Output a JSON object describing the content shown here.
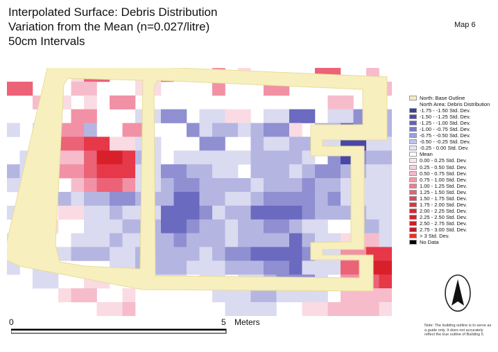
{
  "title": {
    "line1": "Interpolated Surface: Debris Distribution",
    "line2": "Variation from the Mean (n=0.027/litre)",
    "line3": "50cm Intervals"
  },
  "map_label": "Map 6",
  "legend": {
    "items": [
      {
        "label": "North: Base Outline",
        "color": "#f5ecb8"
      },
      {
        "label": "North Area: Debris Distribution",
        "color": null
      },
      {
        "label": "-1.75 - -1.50 Std. Dev.",
        "color": "#3d3d9e"
      },
      {
        "label": "-1.50 - -1.25 Std. Dev.",
        "color": "#4b4bab"
      },
      {
        "label": "-1.25 - -1.00 Std. Dev.",
        "color": "#6060bb"
      },
      {
        "label": "-1.00 - -0.75 Std. Dev.",
        "color": "#7b7bca"
      },
      {
        "label": "-0.75 - -0.50 Std. Dev.",
        "color": "#9e9ed9"
      },
      {
        "label": "-0.50 - -0.25 Std. Dev.",
        "color": "#c3c3e8"
      },
      {
        "label": "-0.25 - 0.00 Std. Dev.",
        "color": "#e4e4f5"
      },
      {
        "label": "Mean",
        "color": "#ffffff"
      },
      {
        "label": "0.00 - 0.25 Std. Dev.",
        "color": "#fbe6ec"
      },
      {
        "label": "0.25 - 0.50 Std. Dev.",
        "color": "#f8d0dc"
      },
      {
        "label": "0.50 - 0.75 Std. Dev.",
        "color": "#f6b8c8"
      },
      {
        "label": "0.75 - 1.00 Std. Dev.",
        "color": "#f39aae"
      },
      {
        "label": "1.00 - 1.25 Std. Dev.",
        "color": "#f07c90"
      },
      {
        "label": "1.25 - 1.50 Std. Dev.",
        "color": "#ec5f72"
      },
      {
        "label": "1.50 - 1.75 Std. Dev.",
        "color": "#e84458"
      },
      {
        "label": "1.75 - 2.00 Std. Dev.",
        "color": "#e4303f"
      },
      {
        "label": "2.00 - 2.25 Std. Dev.",
        "color": "#e0242f"
      },
      {
        "label": "2.25 - 2.50 Std. Dev.",
        "color": "#d8202a"
      },
      {
        "label": "2.50 - 2.75 Std. Dev.",
        "color": "#d01c24"
      },
      {
        "label": "2.75 - 3.00 Std. Dev.",
        "color": "#c8181e"
      },
      {
        "label": "> 3 Std. Dev.",
        "color": "#ff2a1a"
      },
      {
        "label": "No Data",
        "color": "#000000"
      }
    ]
  },
  "scale": {
    "start": "0",
    "end": "5",
    "unit": "Meters"
  },
  "north_arrow_label": "N",
  "note": "Note: The building outline is to serve as a guide only. It does not accurately reflect the true outline of Building 5.",
  "colors": {
    "outline_fill": "#f7efbe",
    "outline_edge": "#e8dc9a"
  },
  "grid": [
    "  0 0 0 0 0 1 4 4 0 0 1 1 4 0 0 0 3 0 1 0 0 0 0 0 4 4 0 0 2 0 ",
    "  0 0 0 0 0 1 4 4 0 0 1 1 4 0 0 0 3 0 1 0 0 0 0 0 4 4 0 0 2 0 ",
    "  4 4 0 0 0 2 2 0 0 0 1 1 0 0 0 0 3 0 0 0 3 3 0 0 0 0 0 0 0 2 ",
    "  4 4 0 0 0 2 2 0 0 0 1 1 0 0 0 0 3 0 0 0 3 3 0 0 0 0 0 0 0 2 ",
    "  0 0 2 2 1 0 1 0 3 3 0 0 0 0 0 0 0 0 0 0 0 0 0 0 0 2 2 0 0 0 ",
    "  0 0 2 2 1 0 1 0 3 3 0 0 0 0 0 0 0 0 0 0 0 0 0 0 0 2 2 0 0 0 ",
    "  0 0 0 0 0 3 3 0 0 0 -1 -1 -3 -3 0 -1 -1 1 1 0 -1 -1 -4 -4 0 -1 -1 -3 -3 -2 ",
    "  0 0 0 0 0 3 3 0 0 0 -1 -1 -3 -3 0 -1 -1 1 1 0 -1 -1 -4 -4 0 -1 -1 -3 -3 -2 ",
    "  -1 0 -1 -1 3 3 -2 0 0 3 3 0 0 0 -3 -1 -2 -2 -1 -2 -3 -3 1 0 -2 -2 -4 -3 -2 -2 ",
    "  -1 0 -1 -1 3 3 -2 0 0 3 3 0 0 0 -3 -1 -2 -2 -1 -2 -3 -3 1 0 -2 -2 -4 -3 -2 -2 ",
    "  0 0 -2 -2 4 4 5 5 1 1 -1 -1 0 0 0 -3 -3 0 0 -2 -1 -1 -2 -2 -1 -1 -5 -5 -1 -1 ",
    "  0 0 -2 -2 4 4 5 5 1 1 -1 -1 0 0 0 -3 -3 0 0 -2 -1 -1 -2 -2 -1 -1 -5 -5 -1 -1 ",
    "  0 -1 0 0 2 2 4 6 6 5 -2 -1 0 -1 -1 -1 -1 -1 -1 -2 -2 -2 -2 -1 0 -3 -5 -3 -2 -2 ",
    "  0 -1 0 0 2 2 4 6 6 5 -2 -1 0 -1 -1 -1 -1 -1 -1 -2 -2 -2 -2 -1 0 -3 -5 -3 -2 -2 ",
    "  -2 -1 5 5 3 3 4 5 5 5 -1 -1 -3 -3 -2 -2 -1 -1 0 -2 -2 -2 -1 -2 -3 -3 -2 -2 -1 -1 ",
    "  -2 -1 5 5 3 3 4 5 5 5 -1 -1 -3 -3 -2 -2 -1 -1 0 -2 -2 -2 -1 -2 -3 -3 -2 -2 -1 -1 ",
    "  -1 -1 0 0 0 2 3 4 4 3 -1 -1 -2 -3 -3 -2 -2 -2 -2 -1 -2 -2 -2 -3 -2 -2 -1 -1 -1 -1 ",
    "  -1 -1 0 0 0 2 3 4 4 3 -1 -1 -2 -3 -3 -2 -2 -2 -2 -1 -2 -2 -2 -3 -2 -2 -1 -1 -1 -1 ",
    "  0 0 -1 -1 -2 -1 -2 -2 -3 -3 -2 -2 -2 -4 -4 -2 -2 -1 -1 -2 -3 -3 -3 -3 -2 -3 -1 -1 -1 -1 ",
    "  0 0 -1 -1 -2 -1 -2 -2 -3 -3 -2 -2 -2 -4 -4 -2 -2 -1 -1 -2 -3 -3 -3 -3 -2 -3 -1 -1 -1 -1 ",
    "  -1 -1 0 0 1 1 -1 -1 -2 -1 -1 -1 -4 -4 -4 -3 -1 -2 -2 -4 -4 -4 -4 -3 -2 -2 -2 -2 -1 -1 ",
    "  -1 -1 0 0 1 1 -1 -1 -2 -1 -1 -1 -4 -4 -4 -3 -1 -2 -2 -4 -4 -4 -4 -3 -2 -2 -2 -2 -1 -1 ",
    "  0 0 1 1 0 0 -1 -1 -1 -2 -2 -2 -4 -4 -3 -2 -2 -1 -2 -2 -3 -3 -2 -1 -1 0 0 -2 -2 -1 ",
    "  0 0 1 1 0 0 -1 -1 -1 -2 -2 -2 -4 -4 -3 -2 -2 -1 -2 -2 -3 -3 -2 -1 -1 0 0 -2 -2 -1 ",
    "  -1 -1 0 0 0 -1 -1 -1 -2 -1 -1 -2 -2 -3 -2 -2 -2 -1 -2 -2 -2 -2 -4 -2 -1 -1 1 2 2 -1 ",
    "  -1 -1 0 0 0 -1 -1 -1 -2 -1 -1 -2 -2 -3 -2 -2 -2 -1 -2 -2 -2 -2 -4 -2 -1 -1 1 2 2 -1 ",
    "  0 0 -1 -1 -1 -2 -2 -2 -1 -1 -2 -2 -2 -2 -2 -1 -2 -3 -3 -4 -4 -4 -4 -3 -1 -1 3 3 5 5 ",
    "  0 0 -1 -1 -1 -2 -2 -2 -1 -1 -2 -2 -2 -2 -2 -1 -2 -3 -3 -4 -4 -4 -4 -3 -1 -1 3 3 5 5 ",
    "  -1 0 -1 -1 0 0 0 0 -1 -1 -2 -2 -2 -2 -1 -1 -1 -2 -2 -2 -3 -3 -4 -1 -1 -1 4 4 6 6 ",
    "  -1 0 -1 -1 0 0 0 0 -1 -1 -2 -2 -2 -2 -1 -1 -1 -2 -2 -2 -3 -3 -4 -1 -1 -1 4 4 6 6 ",
    "  0 0 -1 -1 0 0 1 1 0 0 -1 -1 -1 -1 0 -1 -1 0 -1 -1 -2 -3 -3 -3 -1 0 3 3 4 5 ",
    "  0 0 -1 -1 0 0 1 1 0 0 -1 -1 -1 -1 0 -1 -1 0 -1 -1 -2 -3 -3 -3 -1 0 3 3 4 5 ",
    "  0 0 0 0 1 2 2 0 0 1 0 0 0 0 0 0 -1 -1 -1 -2 -2 -1 -1 -1 -1 0 2 2 2 2 ",
    "  0 0 0 0 1 2 2 0 0 1 0 0 0 0 0 0 -1 -1 -1 -2 -2 -1 -1 -1 -1 0 2 2 2 2 ",
    "  0 0 0 0 0 0 0 1 1 2 0 0 0 0 0 0 0 -1 -1 -1 -1 0 0 1 1 2 2 2 2 1 ",
    "  0 0 0 0 0 0 0 1 1 2 0 0 0 0 0 0 0 -1 -1 -1 -1 0 0 1 1 2 2 2 2 1 "
  ]
}
